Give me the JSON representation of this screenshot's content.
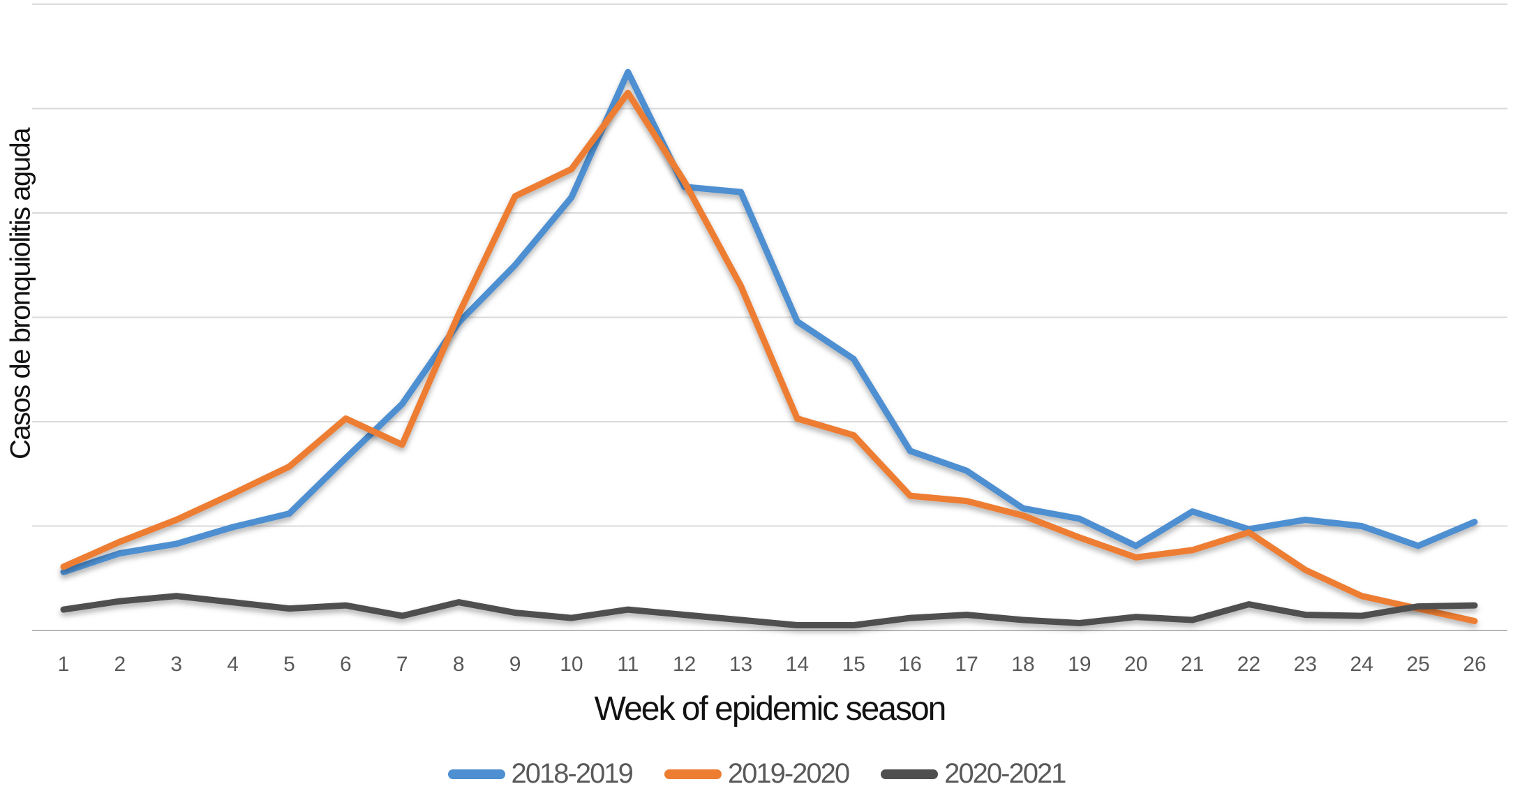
{
  "figure": {
    "ylabel": "Casos de bronquiolitis aguda",
    "xlabel": "Week of epidemic season"
  },
  "chart_data": {
    "type": "line",
    "title": "",
    "xlabel": "Week of epidemic season",
    "ylabel": "Casos de bronquiolitis aguda",
    "categories": [
      "1",
      "2",
      "3",
      "4",
      "5",
      "6",
      "7",
      "8",
      "9",
      "10",
      "11",
      "12",
      "13",
      "14",
      "15",
      "16",
      "17",
      "18",
      "19",
      "20",
      "21",
      "22",
      "23",
      "24",
      "25",
      "26"
    ],
    "y_axis": {
      "tick_labels_shown": false,
      "note": "y-axis has no numeric tick labels; values are expressed in gridline units (baseline axis = 0, one gridline spacing = 1)",
      "gridline_values": [
        0,
        1,
        2,
        3,
        4,
        5,
        6
      ]
    },
    "ylim": [
      0,
      6.05
    ],
    "grid": true,
    "legend_position": "bottom",
    "colors": {
      "grid": "#dadada",
      "axis_line": "#b8b8b8",
      "tick_text": "#595959",
      "axis_title_text": "#121212"
    },
    "series": [
      {
        "name": "2018-2019",
        "color": "#4d8fd1",
        "values": [
          0.56,
          0.74,
          0.83,
          0.99,
          1.12,
          1.65,
          2.17,
          2.95,
          3.5,
          4.15,
          5.35,
          4.25,
          4.2,
          2.96,
          2.6,
          1.72,
          1.53,
          1.17,
          1.07,
          0.81,
          1.14,
          0.97,
          1.06,
          1.0,
          0.81,
          1.04
        ]
      },
      {
        "name": "2019-2020",
        "color": "#ed7d31",
        "values": [
          0.61,
          0.85,
          1.06,
          1.31,
          1.57,
          2.03,
          1.78,
          3.03,
          4.16,
          4.42,
          5.15,
          4.3,
          3.3,
          2.03,
          1.87,
          1.29,
          1.24,
          1.1,
          0.89,
          0.7,
          0.77,
          0.94,
          0.58,
          0.33,
          0.21,
          0.09
        ]
      },
      {
        "name": "2020-2021",
        "color": "#4f4f4f",
        "values": [
          0.2,
          0.28,
          0.33,
          0.27,
          0.21,
          0.24,
          0.14,
          0.27,
          0.17,
          0.12,
          0.2,
          0.15,
          0.1,
          0.05,
          0.05,
          0.12,
          0.15,
          0.1,
          0.07,
          0.13,
          0.1,
          0.25,
          0.15,
          0.14,
          0.23,
          0.24
        ]
      }
    ]
  }
}
